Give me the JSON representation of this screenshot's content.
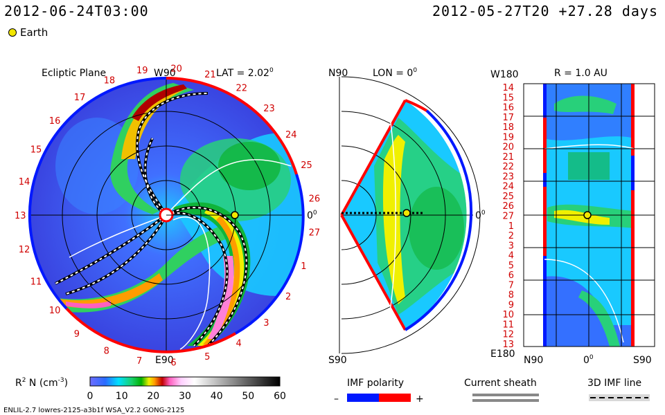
{
  "header": {
    "date": "2012-06-24T03:00",
    "run_info": "2012-05-27T20 +27.28 days"
  },
  "legend_earth": {
    "label": "Earth",
    "color": "#f2e600"
  },
  "ecliptic": {
    "title": "Ecliptic Plane",
    "top_label": "W90",
    "bottom_label": "E90",
    "right_label": "0",
    "right_label_sup": "0",
    "lat_label": "LAT = 2.02",
    "lat_sup": "0",
    "longitude_ticks": [
      "19",
      "20",
      "21",
      "22",
      "23",
      "24",
      "25",
      "26",
      "27",
      "1",
      "2",
      "3",
      "4",
      "5",
      "6",
      "7",
      "8",
      "9",
      "10",
      "11",
      "12",
      "13",
      "14",
      "15",
      "16",
      "17",
      "18"
    ]
  },
  "meridional": {
    "top_left": "N90",
    "bottom_left": "S90",
    "lon_label": "LON = 0",
    "lon_sup": "0",
    "right_label": "0",
    "right_sup": "0"
  },
  "synoptic": {
    "top_left": "W180",
    "bottom_left": "E180",
    "radius_label": "R = 1.0 AU",
    "rows": [
      "14",
      "15",
      "16",
      "17",
      "18",
      "19",
      "20",
      "21",
      "22",
      "23",
      "24",
      "25",
      "26",
      "27",
      "1",
      "2",
      "3",
      "4",
      "5",
      "6",
      "7",
      "8",
      "9",
      "10",
      "11",
      "12",
      "13"
    ],
    "x_labels": [
      "N90",
      "0",
      "S90"
    ],
    "x_mid_sup": "0"
  },
  "colorbar": {
    "title": "R",
    "title_sup": "2",
    "title_rest": " N (cm",
    "title_unit_sup": "-3",
    "title_end": ")",
    "ticks": [
      "0",
      "10",
      "20",
      "30",
      "40",
      "50",
      "60"
    ]
  },
  "imf_polarity": {
    "title": "IMF polarity",
    "minus": "–",
    "plus": "+",
    "neg_color": "#0018ff",
    "pos_color": "#ff0000"
  },
  "current_sheath": {
    "title": "Current sheath"
  },
  "imf_line": {
    "title": "3D IMF line"
  },
  "footer": {
    "model": "ENLIL-2.7 lowres-2125-a3b1f WSA_V2.2 GONG-2125"
  }
}
